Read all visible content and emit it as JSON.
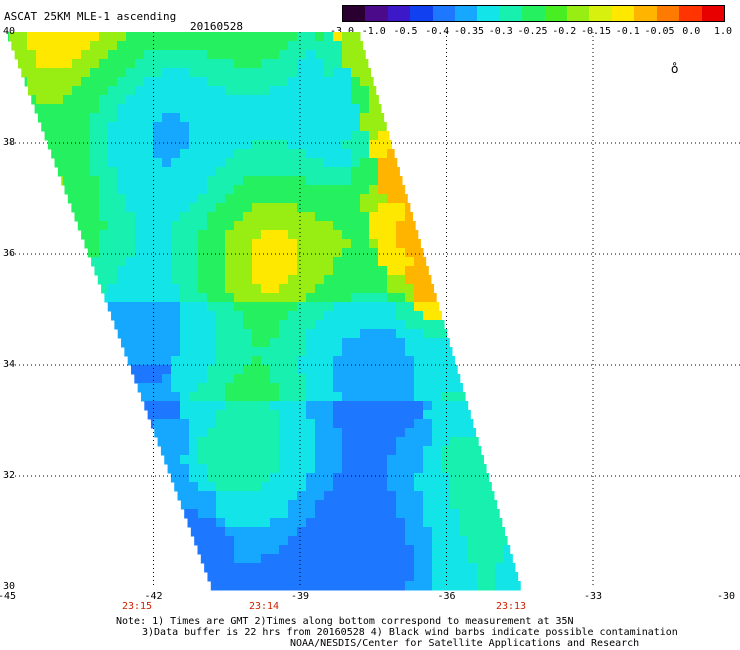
{
  "header": {
    "title": "ASCAT 25KM MLE-1 ascending",
    "date": "20160528"
  },
  "colorbar": {
    "labels": [
      "-3.0",
      "-1.0",
      "-0.5",
      "-0.4",
      "-0.35",
      "-0.3",
      "-0.25",
      "-0.2",
      "-0.15",
      "-0.1",
      "-0.05",
      "0.0",
      "1.0"
    ],
    "colors": [
      "#2a0030",
      "#4a0a8a",
      "#3d18c8",
      "#1040f0",
      "#1e78ff",
      "#16a8ff",
      "#12e4e8",
      "#18f0b0",
      "#24f060",
      "#48ee22",
      "#98ee12",
      "#d8f00e",
      "#ffe800",
      "#ffb400",
      "#ff7a00",
      "#ff3400",
      "#e80000"
    ]
  },
  "axes": {
    "lat_labels": [
      "40",
      "38",
      "36",
      "34",
      "32",
      "30"
    ],
    "lon_labels": [
      "-45",
      "-42",
      "-39",
      "-36",
      "-33",
      "-30"
    ],
    "time_labels": [
      "23:15",
      "23:14",
      "23:13"
    ]
  },
  "notes": {
    "line1": "Note: 1) Times are GMT 2)Times along bottom correspond to measurement at 35N",
    "line2": "3)Data buffer is 22 hrs from 20160528 4) Black wind barbs indicate possible contamination",
    "line3": "NOAA/NESDIS/Center for Satellite Applications and Research"
  },
  "swath_palette": {
    "blue": "#1e78ff",
    "light_blue": "#16a8ff",
    "cyan": "#12e4e8",
    "aqua_green": "#18f0b0",
    "green": "#24f060",
    "yellow_green": "#98ee12",
    "yellow": "#ffe800",
    "orange": "#ffb400"
  }
}
